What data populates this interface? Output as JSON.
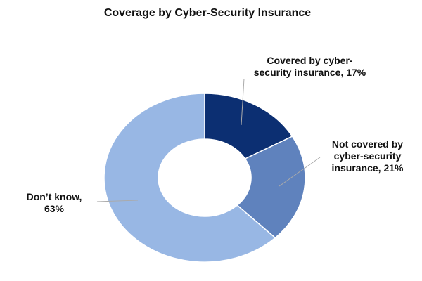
{
  "chart_data": {
    "type": "donut",
    "title": "Coverage by Cyber-Security Insurance",
    "categories": [
      "Covered by cyber-security insurance,",
      "Not covered by cyber-security insurance,",
      "Don’t know,"
    ],
    "values": [
      17,
      21,
      63
    ],
    "value_labels": [
      "17%",
      "21%",
      "63%"
    ],
    "colors": [
      "#0c2f72",
      "#5f82bd",
      "#98b7e4"
    ]
  }
}
